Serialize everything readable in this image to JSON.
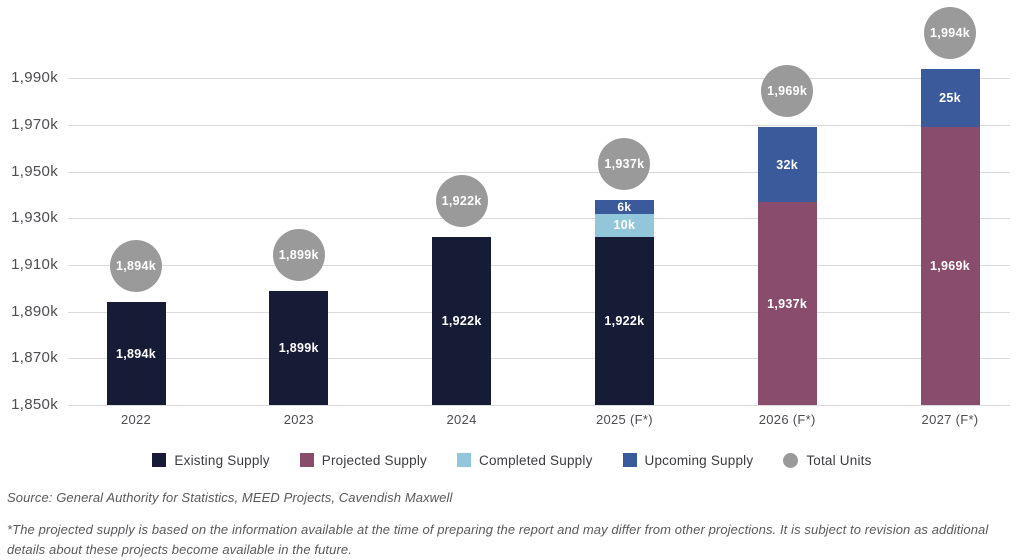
{
  "chart_data": {
    "type": "bar",
    "subtype": "stacked",
    "categories": [
      "2022",
      "2023",
      "2024",
      "2025 (F*)",
      "2026 (F*)",
      "2027 (F*)"
    ],
    "unit": "thousand residential units",
    "y_axis": {
      "min": 1850,
      "max": 1990,
      "step": 20,
      "ticks": [
        {
          "value": 1850,
          "label": "1,850k"
        },
        {
          "value": 1870,
          "label": "1,870k"
        },
        {
          "value": 1890,
          "label": "1,890k"
        },
        {
          "value": 1910,
          "label": "1,910k"
        },
        {
          "value": 1930,
          "label": "1,930k"
        },
        {
          "value": 1950,
          "label": "1,950k"
        },
        {
          "value": 1970,
          "label": "1,970k"
        },
        {
          "value": 1990,
          "label": "1,990k"
        }
      ],
      "grid": true
    },
    "series": [
      {
        "name": "Existing Supply",
        "color": "#161c36",
        "values": [
          1894,
          1899,
          1922,
          1922,
          null,
          null
        ]
      },
      {
        "name": "Projected Supply",
        "color": "#8a4c6c",
        "values": [
          null,
          null,
          null,
          null,
          1937,
          1969
        ]
      },
      {
        "name": "Completed Supply",
        "color": "#92c7db",
        "values": [
          null,
          null,
          null,
          10,
          null,
          null
        ]
      },
      {
        "name": "Upcoming Supply",
        "color": "#3a5a9b",
        "values": [
          null,
          null,
          null,
          6,
          32,
          25
        ]
      }
    ],
    "totals": [
      1894,
      1899,
      1922,
      1937,
      1969,
      1994
    ],
    "bars": [
      {
        "category": "2022",
        "total_label": "1,894k",
        "segments": [
          {
            "series": "Existing Supply",
            "height_k": 44,
            "label": "1,894k"
          }
        ]
      },
      {
        "category": "2023",
        "total_label": "1,899k",
        "segments": [
          {
            "series": "Existing Supply",
            "height_k": 49,
            "label": "1,899k"
          }
        ]
      },
      {
        "category": "2024",
        "total_label": "1,922k",
        "segments": [
          {
            "series": "Existing Supply",
            "height_k": 72,
            "label": "1,922k"
          }
        ]
      },
      {
        "category": "2025 (F*)",
        "total_label": "1,937k",
        "segments": [
          {
            "series": "Existing Supply",
            "height_k": 72,
            "label": "1,922k"
          },
          {
            "series": "Completed Supply",
            "height_k": 10,
            "label": "10k"
          },
          {
            "series": "Upcoming Supply",
            "height_k": 6,
            "label": "6k"
          }
        ]
      },
      {
        "category": "2026 (F*)",
        "total_label": "1,969k",
        "segments": [
          {
            "series": "Projected Supply",
            "height_k": 87,
            "label": "1,937k"
          },
          {
            "series": "Upcoming Supply",
            "height_k": 32,
            "label": "32k"
          }
        ]
      },
      {
        "category": "2027 (F*)",
        "total_label": "1,994k",
        "segments": [
          {
            "series": "Projected Supply",
            "height_k": 119,
            "label": "1,969k"
          },
          {
            "series": "Upcoming Supply",
            "height_k": 25,
            "label": "25k"
          }
        ]
      }
    ],
    "legend_position": "bottom",
    "title": "",
    "xlabel": "",
    "ylabel": ""
  },
  "legend": {
    "items": [
      {
        "label": "Existing Supply",
        "color": "#161c36",
        "shape": "square"
      },
      {
        "label": "Projected Supply",
        "color": "#8a4c6c",
        "shape": "square"
      },
      {
        "label": "Completed Supply",
        "color": "#92c7db",
        "shape": "square"
      },
      {
        "label": "Upcoming Supply",
        "color": "#3a5a9b",
        "shape": "square"
      },
      {
        "label": "Total Units",
        "color": "#9a9a9a",
        "shape": "circle"
      }
    ]
  },
  "colors": {
    "total_circle": "#9a9a9a",
    "gridline": "#dadada",
    "axis_text": "#4d4d52",
    "bar_label_text": "#ffffff"
  },
  "footer": {
    "source": "Source: General Authority for Statistics, MEED Projects, Cavendish Maxwell",
    "footnote": "*The projected supply is based on the information available at the time of preparing the report and may differ from other projections. It is subject to revision as additional details about these projects become available in the future."
  }
}
